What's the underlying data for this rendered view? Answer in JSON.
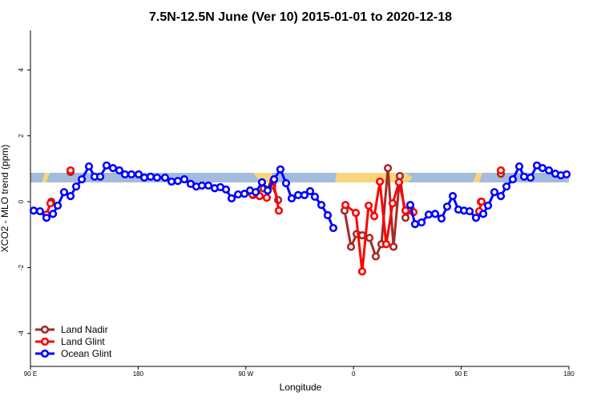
{
  "chart_data": {
    "type": "line",
    "title": "7.5N-12.5N June (Ver 10)   2015-01-01 to 2020-12-18",
    "x_label": "Longitude",
    "y_label": "XCO2 - MLO trend (ppm)",
    "xlim": [
      90,
      540
    ],
    "xticks": [
      {
        "value": 90,
        "label": "90 E"
      },
      {
        "value": 180,
        "label": "180"
      },
      {
        "value": 270,
        "label": "90 W"
      },
      {
        "value": 360,
        "label": "0"
      },
      {
        "value": 450,
        "label": "90 E"
      },
      {
        "value": 540,
        "label": "180"
      }
    ],
    "ylim": [
      -5,
      5.2
    ],
    "yticks": [
      -4,
      -2,
      0,
      2,
      4
    ],
    "legend": "bottom-left",
    "series": [
      {
        "name": "Land Nadir",
        "color": "#a52a2a",
        "x": [
          107.4,
          115,
          123.5,
          200,
          276,
          285,
          292,
          297,
          320,
          352.5,
          357.9,
          362.6,
          367.2,
          373.3,
          378.6,
          383.3,
          388.7,
          393.4,
          398.7,
          403.4,
          408.1,
          440,
          466.4,
          475,
          483.1
        ],
        "values": [
          0.0,
          null,
          0.9,
          null,
          0.2,
          0.4,
          0.5,
          0.05,
          null,
          -0.27,
          -1.37,
          -0.98,
          -1.02,
          -1.1,
          -1.66,
          -1.29,
          1.02,
          -1.37,
          0.78,
          -0.49,
          -0.24,
          null,
          0.0,
          null,
          0.85
        ]
      },
      {
        "name": "Land Glint",
        "color": "#ff0000",
        "x": [
          103.4,
          106.7,
          115,
          123.5,
          200,
          275.5,
          281.5,
          287.5,
          293,
          297.6,
          320,
          353.2,
          361.9,
          367.2,
          372.6,
          377.3,
          382,
          387.3,
          392.7,
          398,
          403.4,
          410.1,
          440,
          465,
          467,
          475,
          483.1
        ],
        "values": [
          -0.39,
          -0.05,
          null,
          0.95,
          null,
          0.22,
          0.17,
          0.12,
          0.63,
          -0.27,
          null,
          -0.1,
          -0.34,
          -2.12,
          -0.12,
          -0.44,
          0.61,
          -1.29,
          -0.05,
          0.59,
          -0.27,
          -0.32,
          null,
          -0.29,
          0.0,
          null,
          0.95
        ]
      },
      {
        "name": "Ocean Glint",
        "color": "#0000ff",
        "x": [
          92.7,
          98,
          103.4,
          108.8,
          112.8,
          118.1,
          123.5,
          128.2,
          132.9,
          138.9,
          143.6,
          148.3,
          153.6,
          159,
          164.3,
          169,
          174.4,
          180.4,
          185.1,
          190.4,
          195.8,
          202.5,
          207.9,
          213.2,
          218.6,
          223.9,
          228.6,
          233.3,
          238.7,
          244,
          248.7,
          253.4,
          258.1,
          263.5,
          268.8,
          273.5,
          278.2,
          283.5,
          288.2,
          293.6,
          298.9,
          303.6,
          308.3,
          313.7,
          319,
          323.7,
          327.7,
          333.1,
          338.4,
          343.1,
          375,
          407.4,
          411.4,
          416.8,
          422.8,
          428.2,
          433.5,
          438.2,
          442.9,
          447.6,
          452.3,
          457,
          462.3,
          468.4,
          472.4,
          477.7,
          483.1,
          487.8,
          493.1,
          498.5,
          502.5,
          507.9,
          513.2,
          517.9,
          523.3,
          528.6,
          533.3,
          538
        ],
        "values": [
          -0.27,
          -0.29,
          -0.49,
          -0.37,
          -0.12,
          0.29,
          0.17,
          0.46,
          0.68,
          1.07,
          0.76,
          0.76,
          1.1,
          1.02,
          0.95,
          0.83,
          0.83,
          0.83,
          0.73,
          0.76,
          0.73,
          0.73,
          0.61,
          0.63,
          0.68,
          0.54,
          0.46,
          0.49,
          0.49,
          0.41,
          0.44,
          0.37,
          0.1,
          0.22,
          0.24,
          0.34,
          0.29,
          0.59,
          0.34,
          0.68,
          0.98,
          0.56,
          0.1,
          0.2,
          0.2,
          0.32,
          0.15,
          -0.1,
          -0.41,
          -0.8,
          null,
          -0.1,
          -0.68,
          -0.63,
          -0.39,
          -0.37,
          -0.51,
          -0.15,
          0.17,
          -0.24,
          -0.27,
          -0.29,
          -0.49,
          -0.37,
          -0.12,
          0.29,
          0.17,
          0.46,
          0.68,
          1.07,
          0.76,
          0.73,
          1.1,
          1.02,
          0.95,
          0.85,
          0.8,
          0.83
        ]
      }
    ]
  }
}
